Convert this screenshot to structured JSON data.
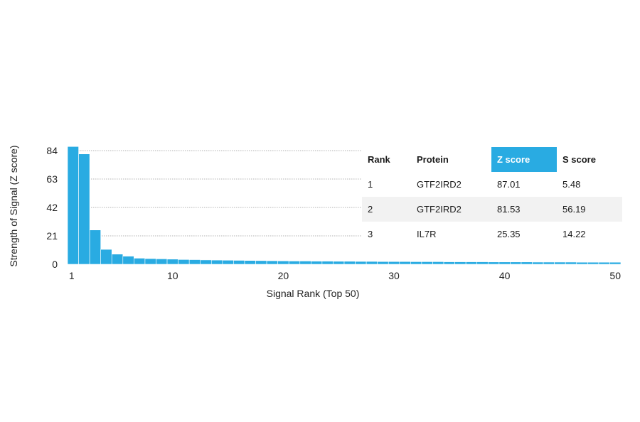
{
  "chart_data": {
    "type": "bar",
    "x": [
      1,
      2,
      3,
      4,
      5,
      6,
      7,
      8,
      9,
      10,
      11,
      12,
      13,
      14,
      15,
      16,
      17,
      18,
      19,
      20,
      21,
      22,
      23,
      24,
      25,
      26,
      27,
      28,
      29,
      30,
      31,
      32,
      33,
      34,
      35,
      36,
      37,
      38,
      39,
      40,
      41,
      42,
      43,
      44,
      45,
      46,
      47,
      48,
      49,
      50
    ],
    "values": [
      87.01,
      81.53,
      25.35,
      11,
      7.5,
      6,
      4.5,
      4.2,
      4,
      3.8,
      3.5,
      3.4,
      3.2,
      3.1,
      3.0,
      2.9,
      2.8,
      2.7,
      2.6,
      2.5,
      2.4,
      2.4,
      2.3,
      2.3,
      2.2,
      2.2,
      2.1,
      2.1,
      2.0,
      2.0,
      2.0,
      1.9,
      1.9,
      1.9,
      1.8,
      1.8,
      1.8,
      1.8,
      1.7,
      1.7,
      1.7,
      1.7,
      1.6,
      1.6,
      1.6,
      1.6,
      1.5,
      1.5,
      1.5,
      1.5
    ],
    "xlabel": "Signal Rank (Top 50)",
    "ylabel": "Strength of Signal (Z score)",
    "ylim": [
      0,
      84
    ],
    "yticks": [
      0,
      21,
      42,
      63,
      84
    ],
    "xticks": [
      1,
      10,
      20,
      30,
      40,
      50
    ],
    "grid": "horizontal dotted",
    "bar_color": "#29abe2",
    "table": {
      "headers": [
        "Rank",
        "Protein",
        "Z score",
        "S score"
      ],
      "highlight_header": "Z score",
      "highlight_color": "#29abe2",
      "rows": [
        [
          "1",
          "GTF2IRD2",
          "87.01",
          "5.48"
        ],
        [
          "2",
          "GTF2IRD2",
          "81.53",
          "56.19"
        ],
        [
          "3",
          "IL7R",
          "25.35",
          "14.22"
        ]
      ]
    }
  }
}
